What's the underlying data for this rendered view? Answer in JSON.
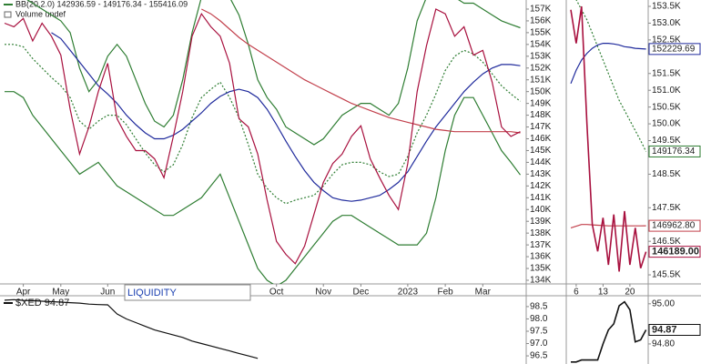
{
  "chart_data": [
    {
      "type": "line",
      "annotations": [
        "BB(20,2.0) 142936.59 - 149176.34 - 155416.09",
        "Volume undef",
        "LIQUIDITY"
      ],
      "categories": [
        null,
        null,
        "Apr",
        null,
        null,
        null,
        "May",
        null,
        null,
        null,
        null,
        "Jun",
        null,
        null,
        null,
        null,
        null,
        null,
        null,
        null,
        null,
        null,
        null,
        null,
        null,
        null,
        null,
        null,
        null,
        "Oct",
        null,
        null,
        null,
        null,
        "Nov",
        null,
        null,
        null,
        "Dec",
        null,
        null,
        null,
        null,
        "2023",
        null,
        null,
        null,
        "Feb",
        null,
        null,
        null,
        "Mar",
        null,
        null,
        null,
        null
      ],
      "ylim": [
        133690,
        157770
      ],
      "yticks": [
        {
          "value": 157000,
          "label": "157K"
        },
        {
          "value": 156000,
          "label": "156K"
        },
        {
          "value": 155000,
          "label": "155K"
        },
        {
          "value": 154000,
          "label": "154K"
        },
        {
          "value": 153000,
          "label": "153K"
        },
        {
          "value": 152000,
          "label": "152K"
        },
        {
          "value": 151000,
          "label": "151K"
        },
        {
          "value": 150000,
          "label": "150K"
        },
        {
          "value": 149000,
          "label": "149K"
        },
        {
          "value": 148000,
          "label": "148K"
        },
        {
          "value": 147000,
          "label": "147K"
        },
        {
          "value": 146000,
          "label": "146K"
        },
        {
          "value": 145000,
          "label": "145K"
        },
        {
          "value": 144000,
          "label": "144K"
        },
        {
          "value": 143000,
          "label": "143K"
        },
        {
          "value": 142000,
          "label": "142K"
        },
        {
          "value": 141000,
          "label": "141K"
        },
        {
          "value": 140000,
          "label": "140K"
        },
        {
          "value": 139000,
          "label": "139K"
        },
        {
          "value": 138000,
          "label": "138K"
        },
        {
          "value": 137000,
          "label": "137K"
        },
        {
          "value": 136000,
          "label": "136K"
        },
        {
          "value": 135000,
          "label": "135K"
        },
        {
          "value": 134000,
          "label": "134K"
        }
      ],
      "grid": false,
      "series": [
        {
          "color": "#2e7d32",
          "dash": false,
          "values": [
            158000,
            158000,
            158000,
            157500,
            157000,
            156500,
            156000,
            155000,
            152000,
            150000,
            151000,
            153000,
            154000,
            153000,
            151000,
            149000,
            147500,
            147000,
            148000,
            151000,
            155000,
            158000,
            158500,
            158500,
            158000,
            156500,
            154000,
            151000,
            149500,
            148500,
            147000,
            146500,
            146000,
            145500,
            146000,
            147000,
            148000,
            148500,
            149000,
            149000,
            148500,
            148000,
            149000,
            152000,
            156000,
            158000,
            158500,
            158500,
            158000,
            157500,
            157500,
            157000,
            156500,
            156000,
            155700,
            155416.09
          ]
        },
        {
          "color": "#2e7d32",
          "dash": false,
          "values": [
            150000,
            150000,
            149500,
            148000,
            147000,
            146000,
            145000,
            144000,
            143000,
            143500,
            144000,
            143000,
            142000,
            141500,
            141000,
            140500,
            140000,
            139500,
            139500,
            140000,
            140500,
            141000,
            142000,
            143000,
            141000,
            139000,
            137000,
            135000,
            134000,
            133500,
            134000,
            135000,
            136000,
            137000,
            138000,
            139000,
            139500,
            139500,
            139000,
            138500,
            138000,
            137500,
            137000,
            137000,
            137000,
            138000,
            141000,
            145000,
            148000,
            149500,
            149500,
            148000,
            146500,
            145000,
            144000,
            142936.59
          ]
        },
        {
          "color": "#2e7d32",
          "dash": true,
          "values": [
            154000,
            154000,
            153800,
            152800,
            152000,
            151200,
            150500,
            149500,
            147500,
            146800,
            147500,
            148000,
            148000,
            147200,
            146000,
            144800,
            143800,
            143200,
            143800,
            145500,
            147800,
            149500,
            150200,
            150800,
            149500,
            147800,
            145500,
            143000,
            141800,
            141000,
            140500,
            140800,
            141000,
            141200,
            142000,
            143000,
            143800,
            144000,
            144000,
            143800,
            143200,
            142800,
            143000,
            144500,
            146500,
            148000,
            149800,
            151800,
            153000,
            153500,
            153200,
            152500,
            151500,
            150500,
            149800,
            149176.34
          ]
        },
        {
          "color": "#1f2a9c",
          "dash": false,
          "values": [
            null,
            null,
            null,
            null,
            null,
            155000,
            154500,
            153500,
            152500,
            151500,
            150500,
            149800,
            149000,
            148000,
            147200,
            146500,
            146000,
            146000,
            146300,
            146800,
            147500,
            148200,
            149000,
            149600,
            150000,
            150200,
            150000,
            149500,
            148500,
            147200,
            145800,
            144500,
            143300,
            142300,
            141600,
            141000,
            140800,
            140700,
            140800,
            141000,
            141200,
            141700,
            142300,
            143200,
            144500,
            145800,
            147000,
            148000,
            149000,
            150000,
            150800,
            151500,
            152000,
            152300,
            152300,
            152200
          ]
        },
        {
          "color": "#c2404c",
          "dash": false,
          "values": [
            null,
            null,
            null,
            null,
            null,
            null,
            null,
            null,
            null,
            null,
            null,
            null,
            null,
            null,
            null,
            null,
            null,
            null,
            null,
            null,
            null,
            157000,
            156600,
            156000,
            155300,
            154600,
            154000,
            153500,
            153000,
            152500,
            152000,
            151500,
            151000,
            150600,
            150200,
            149800,
            149400,
            149000,
            148700,
            148400,
            148100,
            147800,
            147600,
            147400,
            147200,
            147000,
            146800,
            146700,
            146600,
            146600,
            146600,
            146600,
            146600,
            146600,
            146600,
            146500
          ]
        },
        {
          "color": "#a8103e",
          "dash": false,
          "values": [
            155800,
            155500,
            156200,
            154300,
            155800,
            154700,
            153100,
            148500,
            144700,
            147000,
            150000,
            152400,
            147700,
            146200,
            145000,
            145000,
            144300,
            142700,
            146200,
            150000,
            154700,
            156600,
            155500,
            154700,
            152400,
            147700,
            147000,
            144700,
            140800,
            137300,
            136200,
            135400,
            136900,
            139600,
            142300,
            143900,
            144700,
            146200,
            147100,
            144300,
            142700,
            141200,
            140000,
            143900,
            150000,
            153900,
            157000,
            156600,
            154700,
            155500,
            153100,
            153500,
            150800,
            147000,
            146200,
            146600
          ]
        }
      ]
    },
    {
      "type": "line",
      "categories": [
        null,
        "6",
        null,
        null,
        null,
        null,
        "13",
        null,
        null,
        null,
        null,
        "20",
        null,
        null,
        null
      ],
      "ylim": [
        145230,
        153690
      ],
      "yticks": [
        {
          "value": 153500,
          "label": "153.5K"
        },
        {
          "value": 153000,
          "label": "153.0K"
        },
        {
          "value": 152500,
          "label": "152.5K"
        },
        {
          "value": 151500,
          "label": "151.5K"
        },
        {
          "value": 151000,
          "label": "151.0K"
        },
        {
          "value": 150500,
          "label": "150.5K"
        },
        {
          "value": 150000,
          "label": "150.0K"
        },
        {
          "value": 149500,
          "label": "149.5K"
        },
        {
          "value": 148500,
          "label": "148.5K"
        },
        {
          "value": 147500,
          "label": "147.5K"
        },
        {
          "value": 146500,
          "label": "146.5K"
        },
        {
          "value": 145500,
          "label": "145.5K"
        }
      ],
      "grid": false,
      "series": [
        {
          "color": "#2e7d32",
          "dash": true,
          "values": [
            154000,
            153700,
            153400,
            153100,
            152700,
            152300,
            151900,
            151500,
            151100,
            150700,
            150400,
            150100,
            149800,
            149500,
            149176.34
          ]
        },
        {
          "color": "#1f2a9c",
          "dash": false,
          "values": [
            151200,
            151600,
            151900,
            152100,
            152250,
            152350,
            152400,
            152400,
            152380,
            152350,
            152300,
            152280,
            152250,
            152240,
            152229.69
          ]
        },
        {
          "color": "#c2404c",
          "dash": false,
          "values": [
            146900,
            146950,
            147000,
            147000,
            146990,
            146980,
            146970,
            146960,
            146960,
            146960,
            146960,
            146960,
            146960,
            146960,
            146962.8
          ],
          "value_labels": [
            null,
            null,
            null,
            null,
            null,
            null,
            null,
            null,
            null,
            null,
            null,
            null,
            null,
            null,
            "146962.80"
          ]
        },
        {
          "color": "#a8103e",
          "dash": false,
          "bold": true,
          "values": [
            153400,
            152400,
            153500,
            150000,
            147000,
            146200,
            147200,
            145800,
            147300,
            145600,
            147400,
            145800,
            146900,
            145700,
            146189
          ],
          "value_labels": [
            null,
            null,
            null,
            null,
            null,
            null,
            null,
            null,
            null,
            null,
            null,
            null,
            null,
            null,
            "146189.00"
          ]
        }
      ]
    },
    {
      "type": "line",
      "title": "$XED 94.87",
      "ylim": [
        96.17,
        98.94
      ],
      "yticks": [
        98.5,
        {
          "value": 98,
          "label": "98.0"
        },
        97.5,
        {
          "value": 97,
          "label": "97.0"
        },
        96.5
      ],
      "grid": false,
      "series": [
        {
          "color": "#111111",
          "dash": false,
          "values": [
            98.76,
            98.78,
            98.75,
            98.74,
            98.72,
            98.7,
            98.68,
            98.66,
            98.64,
            98.6,
            98.58,
            98.57,
            98.2,
            98.0,
            97.85,
            97.7,
            97.55,
            97.45,
            97.35,
            97.25,
            97.1,
            97.0,
            96.9,
            96.8,
            96.7,
            96.6,
            96.5,
            96.4,
            null,
            null,
            null,
            null,
            null,
            null,
            null,
            null,
            null,
            null,
            null,
            null,
            null,
            null,
            null,
            null,
            null,
            null,
            null,
            null,
            null,
            null,
            null,
            null,
            null,
            null,
            null,
            null
          ]
        }
      ]
    },
    {
      "type": "line",
      "ylim": [
        94.7,
        95.04
      ],
      "yticks": [
        {
          "value": 95,
          "label": "95.00"
        },
        {
          "value": 94.8,
          "label": "94.80"
        }
      ],
      "grid": false,
      "series": [
        {
          "color": "#111111",
          "dash": false,
          "bold": true,
          "values": [
            94.71,
            94.71,
            94.72,
            94.72,
            94.72,
            94.72,
            94.8,
            94.87,
            94.9,
            94.99,
            95.01,
            94.97,
            94.81,
            94.82,
            94.87
          ]
        }
      ]
    }
  ]
}
